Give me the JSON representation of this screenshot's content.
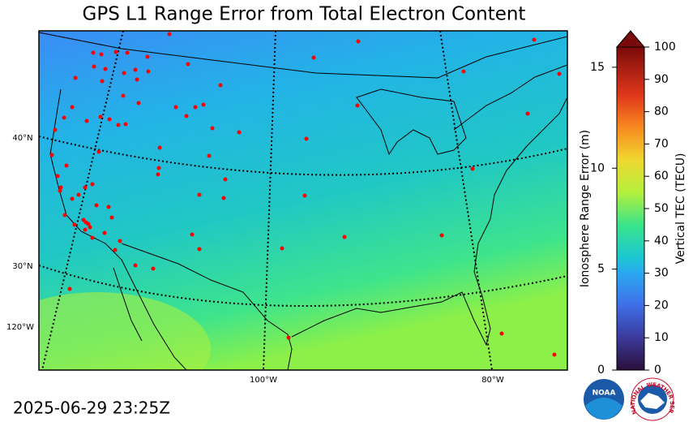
{
  "title": "GPS L1 Range Error from Total Electron Content",
  "timestamp": "2025-06-29 23:25Z",
  "map": {
    "lat_labels": [
      "40°N",
      "30°N"
    ],
    "lon_labels": [
      "120°W",
      "100°W",
      "80°W"
    ]
  },
  "colorbar": {
    "left_label": "Ionosphere Range Error (m)",
    "left_lim": [
      0,
      16
    ],
    "left_ticks": [
      0,
      5,
      10,
      15
    ],
    "right_label": "Vertical TEC (TECU)",
    "right_lim": [
      0,
      100
    ],
    "right_ticks": [
      0,
      10,
      20,
      30,
      40,
      50,
      60,
      70,
      80,
      90,
      100
    ]
  },
  "logos": {
    "noaa": "NOAA",
    "nws": "NATIONAL WEATHER SERVICE"
  }
}
